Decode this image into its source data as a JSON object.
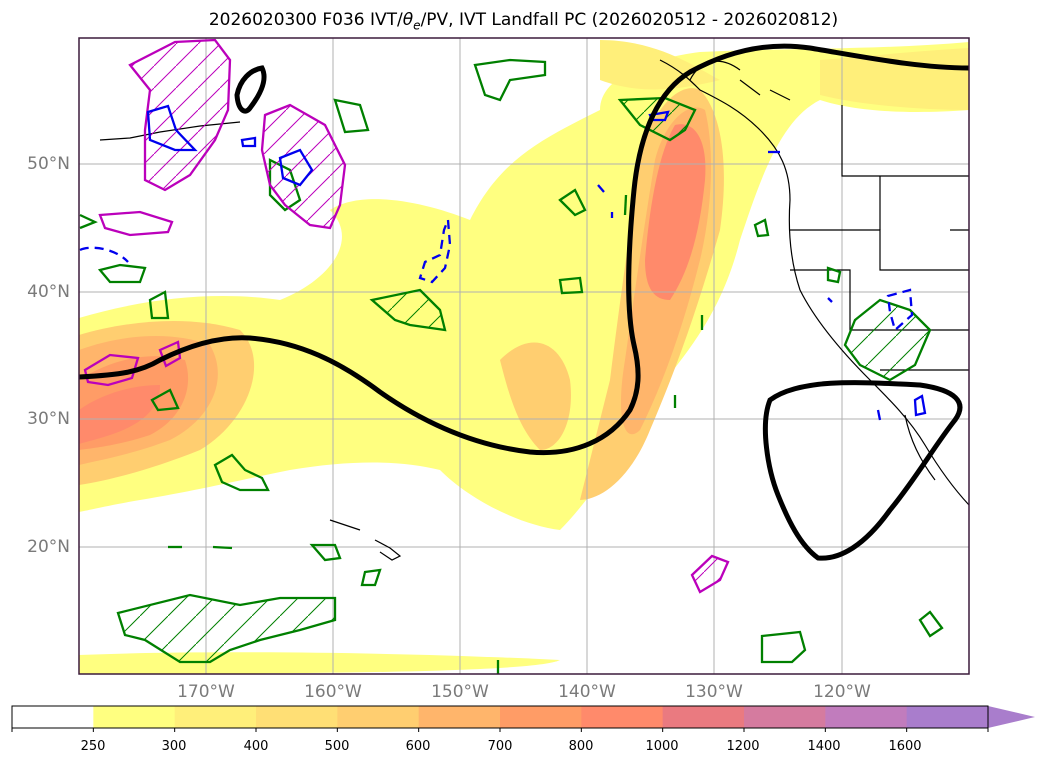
{
  "title": {
    "prefix": "2026020300 F036 IVT/",
    "theta": "θ",
    "theta_sub": "e",
    "suffix": "/PV, IVT Landfall PC (2026020512 - 2026020812)"
  },
  "map": {
    "lon_range": [
      -180,
      -110
    ],
    "lat_range": [
      10,
      60
    ],
    "lat_ticks": [
      {
        "value": 50,
        "label": "50°N"
      },
      {
        "value": 40,
        "label": "40°N"
      },
      {
        "value": 30,
        "label": "30°N"
      },
      {
        "value": 20,
        "label": "20°N"
      }
    ],
    "lon_ticks": [
      {
        "value": -170,
        "label": "170°W"
      },
      {
        "value": -160,
        "label": "160°W"
      },
      {
        "value": -150,
        "label": "150°W"
      },
      {
        "value": -140,
        "label": "140°W"
      },
      {
        "value": -130,
        "label": "130°W"
      },
      {
        "value": -120,
        "label": "120°W"
      }
    ],
    "gridlines": true
  },
  "colorbar": {
    "levels": [
      "250",
      "300",
      "400",
      "500",
      "600",
      "700",
      "800",
      "1000",
      "1200",
      "1400",
      "1600"
    ],
    "colors": [
      "#ffffff",
      "#ffff80",
      "#ffef7a",
      "#ffdf75",
      "#ffce70",
      "#ffb56b",
      "#ff9c66",
      "#ff8a6b",
      "#ea7a80",
      "#d57b9f",
      "#c17cbd",
      "#a97dcc"
    ],
    "extend": "max"
  },
  "colors": {
    "ivt_landfall_pc": "#000000",
    "pv_positive": "#bb00bb",
    "theta_e": "#008000",
    "pv_negative": "#0000ee",
    "coastline": "#000000",
    "gridline": "#b0b0b0"
  }
}
